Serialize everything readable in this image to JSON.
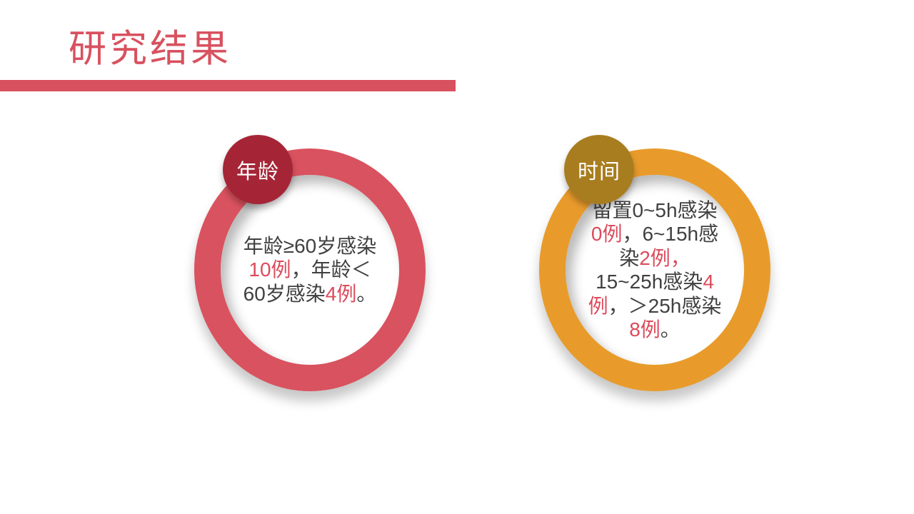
{
  "title": "研究结果",
  "colors": {
    "accent": "#D8515F",
    "text_dark": "#404040",
    "text_red": "#DC4B5B"
  },
  "cards": [
    {
      "badge_label": "年龄",
      "ring_color": "#D9525F",
      "badge_color": "#A52537",
      "lines": [
        [
          {
            "text": "年龄≥60岁感染",
            "red": false
          }
        ],
        [
          {
            "text": "10例",
            "red": true
          },
          {
            "text": "，年龄＜",
            "red": false
          }
        ],
        [
          {
            "text": "60岁感染",
            "red": false
          },
          {
            "text": "4例",
            "red": true
          },
          {
            "text": "。",
            "red": false
          }
        ]
      ]
    },
    {
      "badge_label": "时间",
      "ring_color": "#E89B2B",
      "badge_color": "#A87D1F",
      "lines": [
        [
          {
            "text": "留置0~5h感染",
            "red": false
          }
        ],
        [
          {
            "text": "0例",
            "red": true
          },
          {
            "text": "，6~15h感",
            "red": false
          }
        ],
        [
          {
            "text": "染",
            "red": false
          },
          {
            "text": "2例，",
            "red": true
          }
        ],
        [
          {
            "text": "15~25h感染",
            "red": false
          },
          {
            "text": "4",
            "red": true
          }
        ],
        [
          {
            "text": "例",
            "red": true
          },
          {
            "text": "，＞25h感染",
            "red": false
          }
        ],
        [
          {
            "text": "8例",
            "red": true
          },
          {
            "text": "。",
            "red": false
          }
        ]
      ]
    }
  ]
}
